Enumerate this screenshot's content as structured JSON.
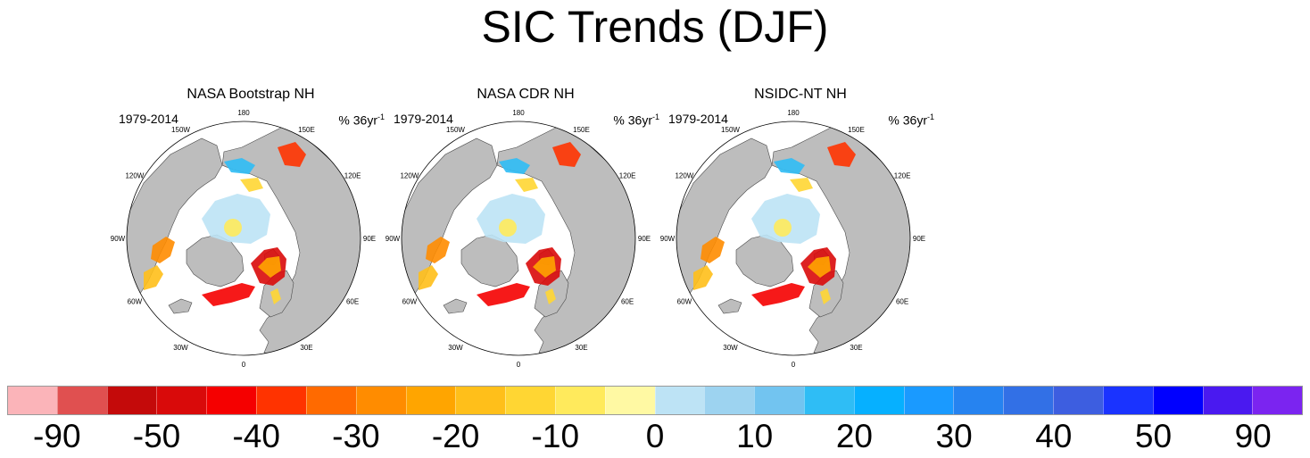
{
  "title": "SIC Trends (DJF)",
  "chart_data": {
    "type": "heatmap",
    "projection": "north-polar-stereographic",
    "panels": [
      {
        "title": "NASA Bootstrap NH",
        "period": "1979-2014",
        "units": "% 36yr",
        "units_exp": "-1"
      },
      {
        "title": "NASA CDR NH",
        "period": "1979-2014",
        "units": "% 36yr",
        "units_exp": "-1"
      },
      {
        "title": "NSIDC-NT NH",
        "period": "1979-2014",
        "units": "% 36yr",
        "units_exp": "-1"
      }
    ],
    "longitude_labels": [
      "180",
      "150E",
      "120E",
      "90E",
      "60E",
      "30E",
      "0",
      "30W",
      "60W",
      "90W",
      "120W",
      "150W"
    ],
    "colorbar": {
      "labels": [
        "-90",
        "-50",
        "-40",
        "-30",
        "-20",
        "-10",
        "0",
        "10",
        "20",
        "30",
        "40",
        "50",
        "90"
      ],
      "colors": [
        "#fbb4b9",
        "#e05050",
        "#c40a0a",
        "#d90a0a",
        "#f50000",
        "#ff3300",
        "#ff6a00",
        "#ff8c00",
        "#ffa500",
        "#ffbf1a",
        "#ffd633",
        "#ffea5c",
        "#fff9a3",
        "#bde3f5",
        "#9dd3f0",
        "#72c4f0",
        "#2fbdf5",
        "#06b0ff",
        "#1a9aff",
        "#2683f0",
        "#3270e6",
        "#3d5ee0",
        "#1a33ff",
        "#0000ff",
        "#4a19f0",
        "#7b24f0"
      ]
    },
    "colors": {
      "land": "#bdbdbd",
      "ocean": "#ffffff",
      "coast": "#4a4a4a"
    }
  }
}
